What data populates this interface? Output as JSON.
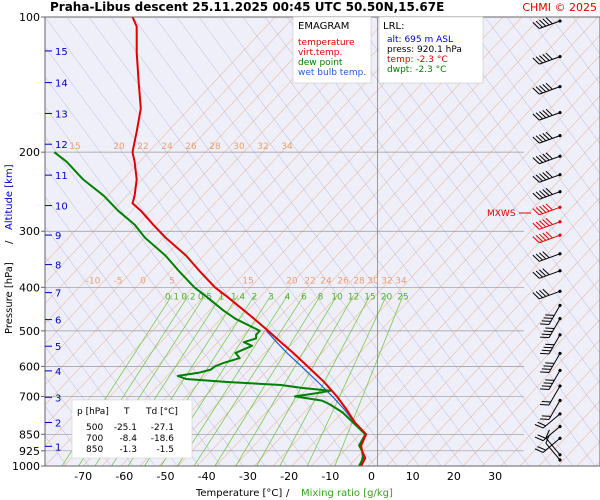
{
  "header": {
    "title": "Praha-Libus   descent   25.11.2025 00:45 UTC   50.50N,15.67E",
    "copyright": "CHMI © 2025"
  },
  "legend": {
    "title": "EMAGRAM",
    "items": [
      {
        "label": "temperature",
        "color": "#e00000"
      },
      {
        "label": "virt.temp.",
        "color": "#e00000"
      },
      {
        "label": "dew point",
        "color": "#008000"
      },
      {
        "label": "wet bulb temp.",
        "color": "#1e5fd0"
      }
    ]
  },
  "lrl": {
    "title": "LRL:",
    "lines": [
      {
        "text": "alt: 695 m ASL",
        "color": "#0000cc"
      },
      {
        "text": "press: 920.1 hPa",
        "color": "#000000"
      },
      {
        "text": "temp: -2.3 °C",
        "color": "#e00000"
      },
      {
        "text": "dwpt: -2.3 °C",
        "color": "#008000"
      }
    ]
  },
  "table": {
    "headers": [
      "p [hPa]",
      "T",
      "Td [°C]"
    ],
    "rows": [
      [
        "500",
        "-25.1",
        "-27.1"
      ],
      [
        "700",
        "-8.4",
        "-18.6"
      ],
      [
        "850",
        "-1.3",
        "-1.5"
      ]
    ]
  },
  "mxws_label": "MXWS",
  "axes": {
    "xlabel_temp": "Temperature [°C]",
    "xlabel_sep": "/",
    "xlabel_mix": "Mixing ratio [g/kg]",
    "ylabel_pressure": "Pressure [hPa]",
    "ylabel_sep": "/",
    "ylabel_alt": "Altitude [km]"
  },
  "colors": {
    "temperature": "#e00000",
    "dewpoint": "#008000",
    "wetbulb": "#1e5fd0",
    "altitude": "#0000cc",
    "dry_adiabat": "#9a9ad2",
    "isotherm": "#e8b088",
    "mixing_ratio": "#7cc84a",
    "isobar": "#999999",
    "plot_bg": "#efeffa"
  },
  "chart_data": {
    "type": "line",
    "y_scale": "log-pressure",
    "xlim": [
      -80,
      40
    ],
    "ylim": [
      1000,
      100
    ],
    "x_ticks": [
      -70,
      -60,
      -50,
      -40,
      -30,
      -20,
      -10,
      0,
      10,
      20,
      30
    ],
    "y_ticks": [
      100,
      200,
      300,
      400,
      500,
      600,
      700,
      850,
      925,
      1000
    ],
    "altitude_ticks_km": [
      1,
      2,
      3,
      4,
      5,
      6,
      7,
      8,
      9,
      10,
      11,
      12,
      13,
      14,
      15
    ],
    "altitude_pressures": [
      904,
      800,
      703,
      614,
      541,
      472,
      411,
      356,
      306,
      263,
      225,
      192,
      164,
      140,
      119
    ],
    "isotherm_labels_200": [
      15,
      20,
      22,
      24,
      26,
      28,
      30,
      32,
      34
    ],
    "isotherm_labels_400": [
      -10,
      -5,
      0,
      5,
      15,
      20,
      22,
      24,
      26,
      28,
      30,
      32,
      34
    ],
    "mixing_ratio_labels": [
      "0.1",
      "0.2",
      "0.5",
      "1",
      "1.4",
      "2",
      "3",
      "4",
      "6",
      "8",
      "10",
      "12",
      "15",
      "20",
      "25"
    ],
    "mixing_ratio_values": [
      0.1,
      0.2,
      0.5,
      1,
      1.4,
      2,
      3,
      4,
      6,
      8,
      10,
      12,
      15,
      20,
      25
    ],
    "series": [
      {
        "name": "temperature",
        "points": [
          [
            1000,
            -2.5
          ],
          [
            960,
            -1.5
          ],
          [
            925,
            -2.3
          ],
          [
            900,
            -2.5
          ],
          [
            850,
            -1.3
          ],
          [
            800,
            -4
          ],
          [
            750,
            -6
          ],
          [
            700,
            -8.4
          ],
          [
            650,
            -11.5
          ],
          [
            600,
            -15.5
          ],
          [
            560,
            -19
          ],
          [
            530,
            -22
          ],
          [
            500,
            -25.1
          ],
          [
            470,
            -28.5
          ],
          [
            450,
            -31
          ],
          [
            420,
            -35
          ],
          [
            400,
            -38
          ],
          [
            370,
            -41.5
          ],
          [
            340,
            -45
          ],
          [
            310,
            -50
          ],
          [
            290,
            -53
          ],
          [
            270,
            -56
          ],
          [
            260,
            -58
          ],
          [
            250,
            -57.5
          ],
          [
            230,
            -57
          ],
          [
            210,
            -57.5
          ],
          [
            200,
            -58
          ],
          [
            180,
            -57
          ],
          [
            160,
            -56
          ],
          [
            140,
            -56.5
          ],
          [
            120,
            -57
          ],
          [
            105,
            -57
          ],
          [
            100,
            -58
          ]
        ]
      },
      {
        "name": "dew point",
        "points": [
          [
            1000,
            -3
          ],
          [
            960,
            -2
          ],
          [
            925,
            -2.3
          ],
          [
            900,
            -3
          ],
          [
            850,
            -1.5
          ],
          [
            800,
            -4.5
          ],
          [
            760,
            -7
          ],
          [
            730,
            -10
          ],
          [
            715,
            -12
          ],
          [
            700,
            -18.6
          ],
          [
            690,
            -14
          ],
          [
            680,
            -10
          ],
          [
            670,
            -17
          ],
          [
            660,
            -22
          ],
          [
            650,
            -35
          ],
          [
            640,
            -45
          ],
          [
            630,
            -47
          ],
          [
            620,
            -42
          ],
          [
            610,
            -39
          ],
          [
            600,
            -38
          ],
          [
            590,
            -36
          ],
          [
            575,
            -32
          ],
          [
            560,
            -33
          ],
          [
            540,
            -29
          ],
          [
            530,
            -31
          ],
          [
            520,
            -28
          ],
          [
            510,
            -28
          ],
          [
            500,
            -27.1
          ],
          [
            470,
            -33
          ],
          [
            450,
            -36
          ],
          [
            420,
            -40
          ],
          [
            400,
            -43
          ],
          [
            370,
            -46.5
          ],
          [
            340,
            -50
          ],
          [
            310,
            -55
          ],
          [
            290,
            -57.5
          ],
          [
            270,
            -61.5
          ],
          [
            250,
            -65
          ],
          [
            230,
            -70
          ],
          [
            210,
            -74
          ],
          [
            200,
            -77
          ]
        ]
      },
      {
        "name": "wet bulb temp.",
        "points": [
          [
            1000,
            -2.7
          ],
          [
            950,
            -2.2
          ],
          [
            925,
            -2.3
          ],
          [
            900,
            -2.7
          ],
          [
            850,
            -1.4
          ],
          [
            800,
            -4.2
          ],
          [
            750,
            -6.5
          ],
          [
            700,
            -9.5
          ],
          [
            650,
            -13
          ],
          [
            600,
            -17
          ],
          [
            560,
            -20.5
          ],
          [
            530,
            -23
          ],
          [
            500,
            -25.5
          ]
        ]
      }
    ]
  }
}
